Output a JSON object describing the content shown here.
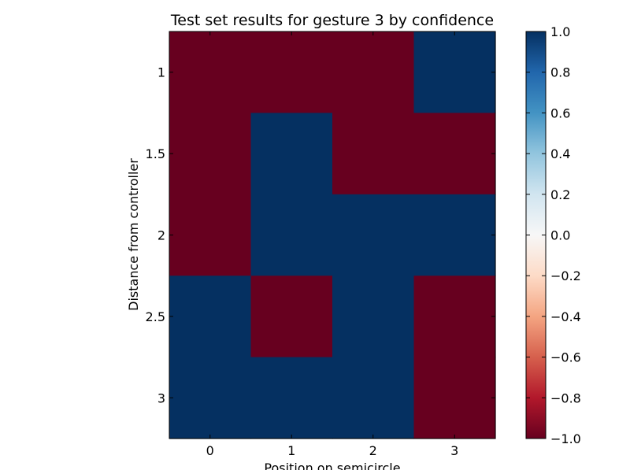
{
  "chart_data": {
    "type": "heatmap",
    "title": "Test set results for gesture 3 by confidence",
    "xlabel": "Position on semicircle",
    "ylabel": "Distance from controller",
    "x_categories": [
      "0",
      "1",
      "2",
      "3"
    ],
    "y_categories": [
      "1",
      "1.5",
      "2",
      "2.5",
      "3"
    ],
    "values": [
      [
        -1,
        -1,
        -1,
        1
      ],
      [
        -1,
        1,
        -1,
        -1
      ],
      [
        -1,
        1,
        1,
        1
      ],
      [
        1,
        -1,
        1,
        -1
      ],
      [
        1,
        1,
        1,
        -1
      ]
    ],
    "colormap": "RdBu",
    "vmin": -1.0,
    "vmax": 1.0,
    "colorbar_ticks": [
      "1.0",
      "0.8",
      "0.6",
      "0.4",
      "0.2",
      "0.0",
      "−0.2",
      "−0.4",
      "−0.6",
      "−0.8",
      "−1.0"
    ],
    "colors": {
      "positive": "#053061",
      "negative": "#67001f"
    }
  }
}
